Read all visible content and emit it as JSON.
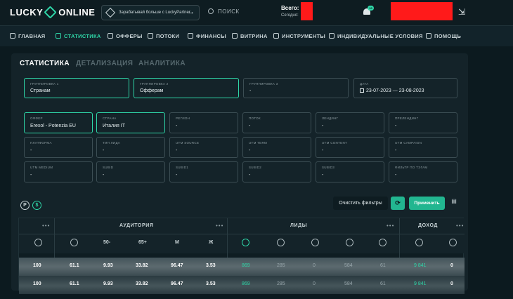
{
  "header": {
    "logo_left": "LUCKY",
    "logo_right": "ONLINE",
    "promo_text": "Зарабатывай больше с LuckyPartner",
    "search_label": "ПОИСК",
    "balance_total_label": "Всего:",
    "balance_today_label": "Сегодня:",
    "notif_count": "10"
  },
  "nav": [
    {
      "label": "ГЛАВНАЯ",
      "icon": "grid-icon"
    },
    {
      "label": "СТАТИСТИКА",
      "icon": "chart-icon"
    },
    {
      "label": "ОФФЕРЫ",
      "icon": "offers-icon"
    },
    {
      "label": "ПОТОКИ",
      "icon": "flows-icon"
    },
    {
      "label": "ФИНАНСЫ",
      "icon": "wallet-icon"
    },
    {
      "label": "ВИТРИНА",
      "icon": "showcase-icon"
    },
    {
      "label": "ИНСТРУМЕНТЫ",
      "icon": "tools-icon"
    },
    {
      "label": "ИНДИВИДУАЛЬНЫЕ УСЛОВИЯ",
      "icon": "star-icon"
    },
    {
      "label": "ПОМОЩЬ",
      "icon": "help-icon"
    }
  ],
  "tabs": [
    "СТАТИСТИКА",
    "ДЕТАЛИЗАЦИЯ",
    "АНАЛИТИКА"
  ],
  "grouping": [
    {
      "label": "ГРУППИРОВКА 1",
      "value": "Странам"
    },
    {
      "label": "ГРУППИРОВКА 2",
      "value": "Офферам"
    },
    {
      "label": "ГРУППИРОВКА 3",
      "value": "-"
    },
    {
      "label": "ДАТА",
      "value": "23-07-2023 — 23-08-2023"
    }
  ],
  "filters": [
    {
      "label": "ОФФЕР",
      "value": "Erexol - Potenzia EU"
    },
    {
      "label": "СТРАНА",
      "value": "Италия IT"
    },
    {
      "label": "РЕГИОН",
      "value": "-"
    },
    {
      "label": "ПОТОК",
      "value": "-"
    },
    {
      "label": "ЛЕНДИНГ",
      "value": "-"
    },
    {
      "label": "ПРЕЛЕНДИНГ",
      "value": "-"
    },
    {
      "label": "ПЛАТФОРМА",
      "value": "-"
    },
    {
      "label": "ТИП ЛИДА",
      "value": "-"
    },
    {
      "label": "UTM SOURCE",
      "value": "-"
    },
    {
      "label": "UTM TERM",
      "value": "-"
    },
    {
      "label": "UTM CONTENT",
      "value": "-"
    },
    {
      "label": "UTM CAMPAIGN",
      "value": "-"
    },
    {
      "label": "UTM MEDIUM",
      "value": "-"
    },
    {
      "label": "SUBID",
      "value": "-"
    },
    {
      "label": "SUBID1",
      "value": "-"
    },
    {
      "label": "SUBID2",
      "value": "-"
    },
    {
      "label": "SUBID3",
      "value": "-"
    },
    {
      "label": "ФИЛЬТР ПО ТЭГАМ",
      "value": "-"
    }
  ],
  "filter_icons": [
    "P",
    "$"
  ],
  "actions": {
    "clear": "Очистить фильтры",
    "apply": "Применить"
  },
  "table": {
    "groups": [
      "АУДИТОРИЯ",
      "ЛИДЫ",
      "ДОХОД"
    ],
    "dots": "•••",
    "audience_cols": [
      "50-",
      "65+",
      "М",
      "Ж"
    ],
    "rows": [
      [
        "100",
        "61.1",
        "9.93",
        "33.82",
        "96.47",
        "3.53",
        "869",
        "285",
        "0",
        "584",
        "61",
        "9 841",
        "0"
      ],
      [
        "100",
        "61.1",
        "9.93",
        "33.82",
        "96.47",
        "3.53",
        "869",
        "285",
        "0",
        "584",
        "61",
        "9 841",
        "0"
      ]
    ]
  }
}
